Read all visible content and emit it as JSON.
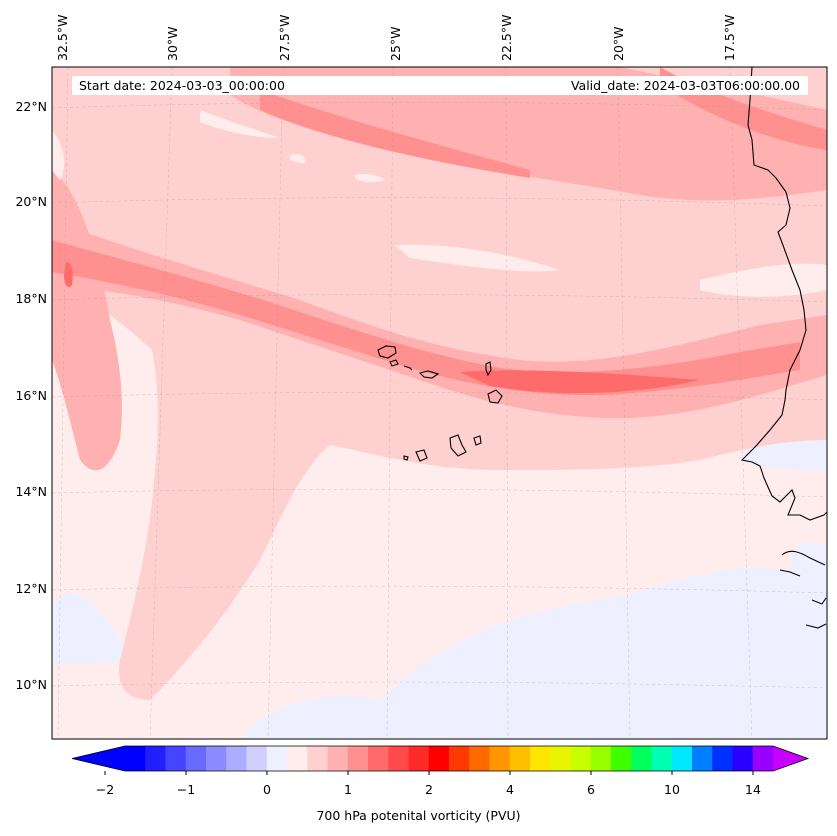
{
  "header": {
    "start_date": "Start date: 2024-03-03_00:00:00",
    "valid_date": "Valid_date: 2024-03-03T06:00:00.00"
  },
  "map": {
    "region": "Eastern tropical North Atlantic / West African coast",
    "lon_labels": [
      "32.5°W",
      "30°W",
      "27.5°W",
      "25°W",
      "22.5°W",
      "20°W",
      "17.5°W"
    ],
    "lat_labels": [
      "22°N",
      "20°N",
      "18°N",
      "16°N",
      "14°N",
      "12°N",
      "10°N"
    ],
    "gridlines": true,
    "features": [
      "coastline",
      "cabo-verde-islands"
    ]
  },
  "colorbar": {
    "label": "700 hPa potenital vorticity (PVU)",
    "tick_labels": [
      "−2",
      "−1",
      "0",
      "1",
      "2",
      "4",
      "6",
      "10",
      "14"
    ],
    "colors": [
      "#0000ff",
      "#2020ff",
      "#4545ff",
      "#6a6aff",
      "#8c8cff",
      "#adadff",
      "#d0d0ff",
      "#eef0ff",
      "#ffeded",
      "#ffd0d0",
      "#ffb0b0",
      "#ff9090",
      "#ff6a6a",
      "#ff4a4a",
      "#ff2a2a",
      "#ff0000",
      "#ff3a00",
      "#ff6a00",
      "#ff9500",
      "#ffbe00",
      "#ffe600",
      "#e9f500",
      "#c7ff00",
      "#95ff00",
      "#3dff00",
      "#00ff5a",
      "#00ffb0",
      "#00e8ff",
      "#0080ff",
      "#0030ff",
      "#2a00ff",
      "#9a00ff"
    ],
    "extend_min_color": "#0000ff",
    "extend_max_color": "#c800ff"
  }
}
